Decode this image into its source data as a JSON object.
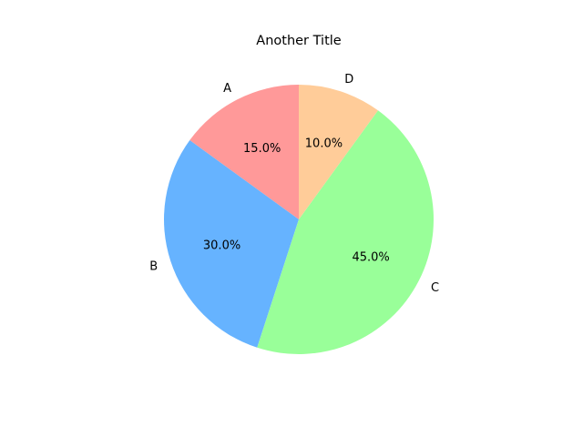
{
  "chart_data": {
    "type": "pie",
    "title": "Another Title",
    "categories": [
      "A",
      "B",
      "C",
      "D"
    ],
    "values": [
      15,
      30,
      45,
      10
    ],
    "percent_labels": [
      "15.0%",
      "30.0%",
      "45.0%",
      "10.0%"
    ],
    "colors": [
      "#ff9999",
      "#66b3ff",
      "#99ff99",
      "#ffcc99"
    ],
    "start_angle_deg": 90,
    "direction": "counterclockwise",
    "legend": "none"
  }
}
